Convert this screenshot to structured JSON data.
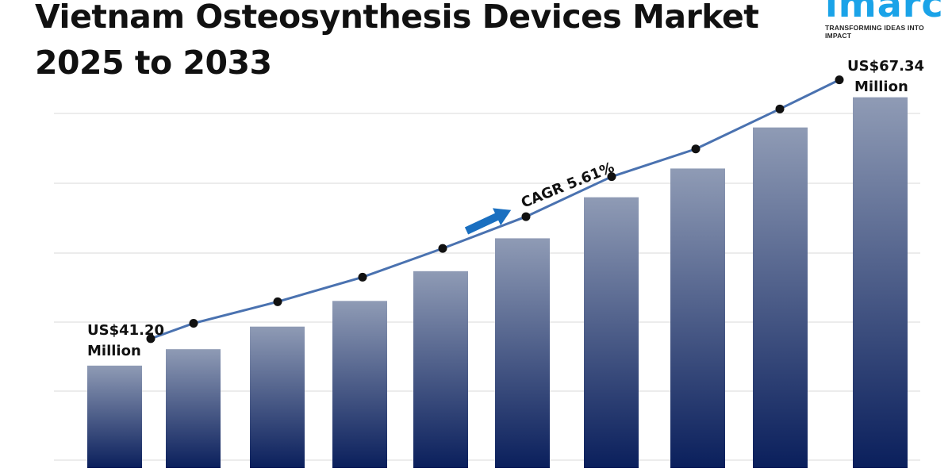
{
  "title_line1": "Vietnam Osteosynthesis Devices Market",
  "title_line2": "2025 to 2033",
  "logo": {
    "word": "imarc",
    "tagline": "TRANSFORMING IDEAS INTO IMPACT",
    "color": "#1aa3e8"
  },
  "chart_data": {
    "type": "bar",
    "title": "Vietnam Osteosynthesis Devices Market 2025 to 2033",
    "values": [
      41.2,
      42.8,
      45.0,
      47.5,
      50.4,
      53.6,
      57.6,
      60.4,
      64.4,
      67.34
    ],
    "line_overlay": true,
    "start_label": [
      "US$41.20",
      "Million"
    ],
    "end_label": [
      "US$67.34",
      "Million"
    ],
    "cagr_label": "CAGR 5.61%",
    "grid": true,
    "bar_color_top": "#8f9bb5",
    "bar_color_bottom": "#0a1f5c",
    "line_color": "#4a72b0",
    "arrow_color": "#1a6fc0"
  }
}
